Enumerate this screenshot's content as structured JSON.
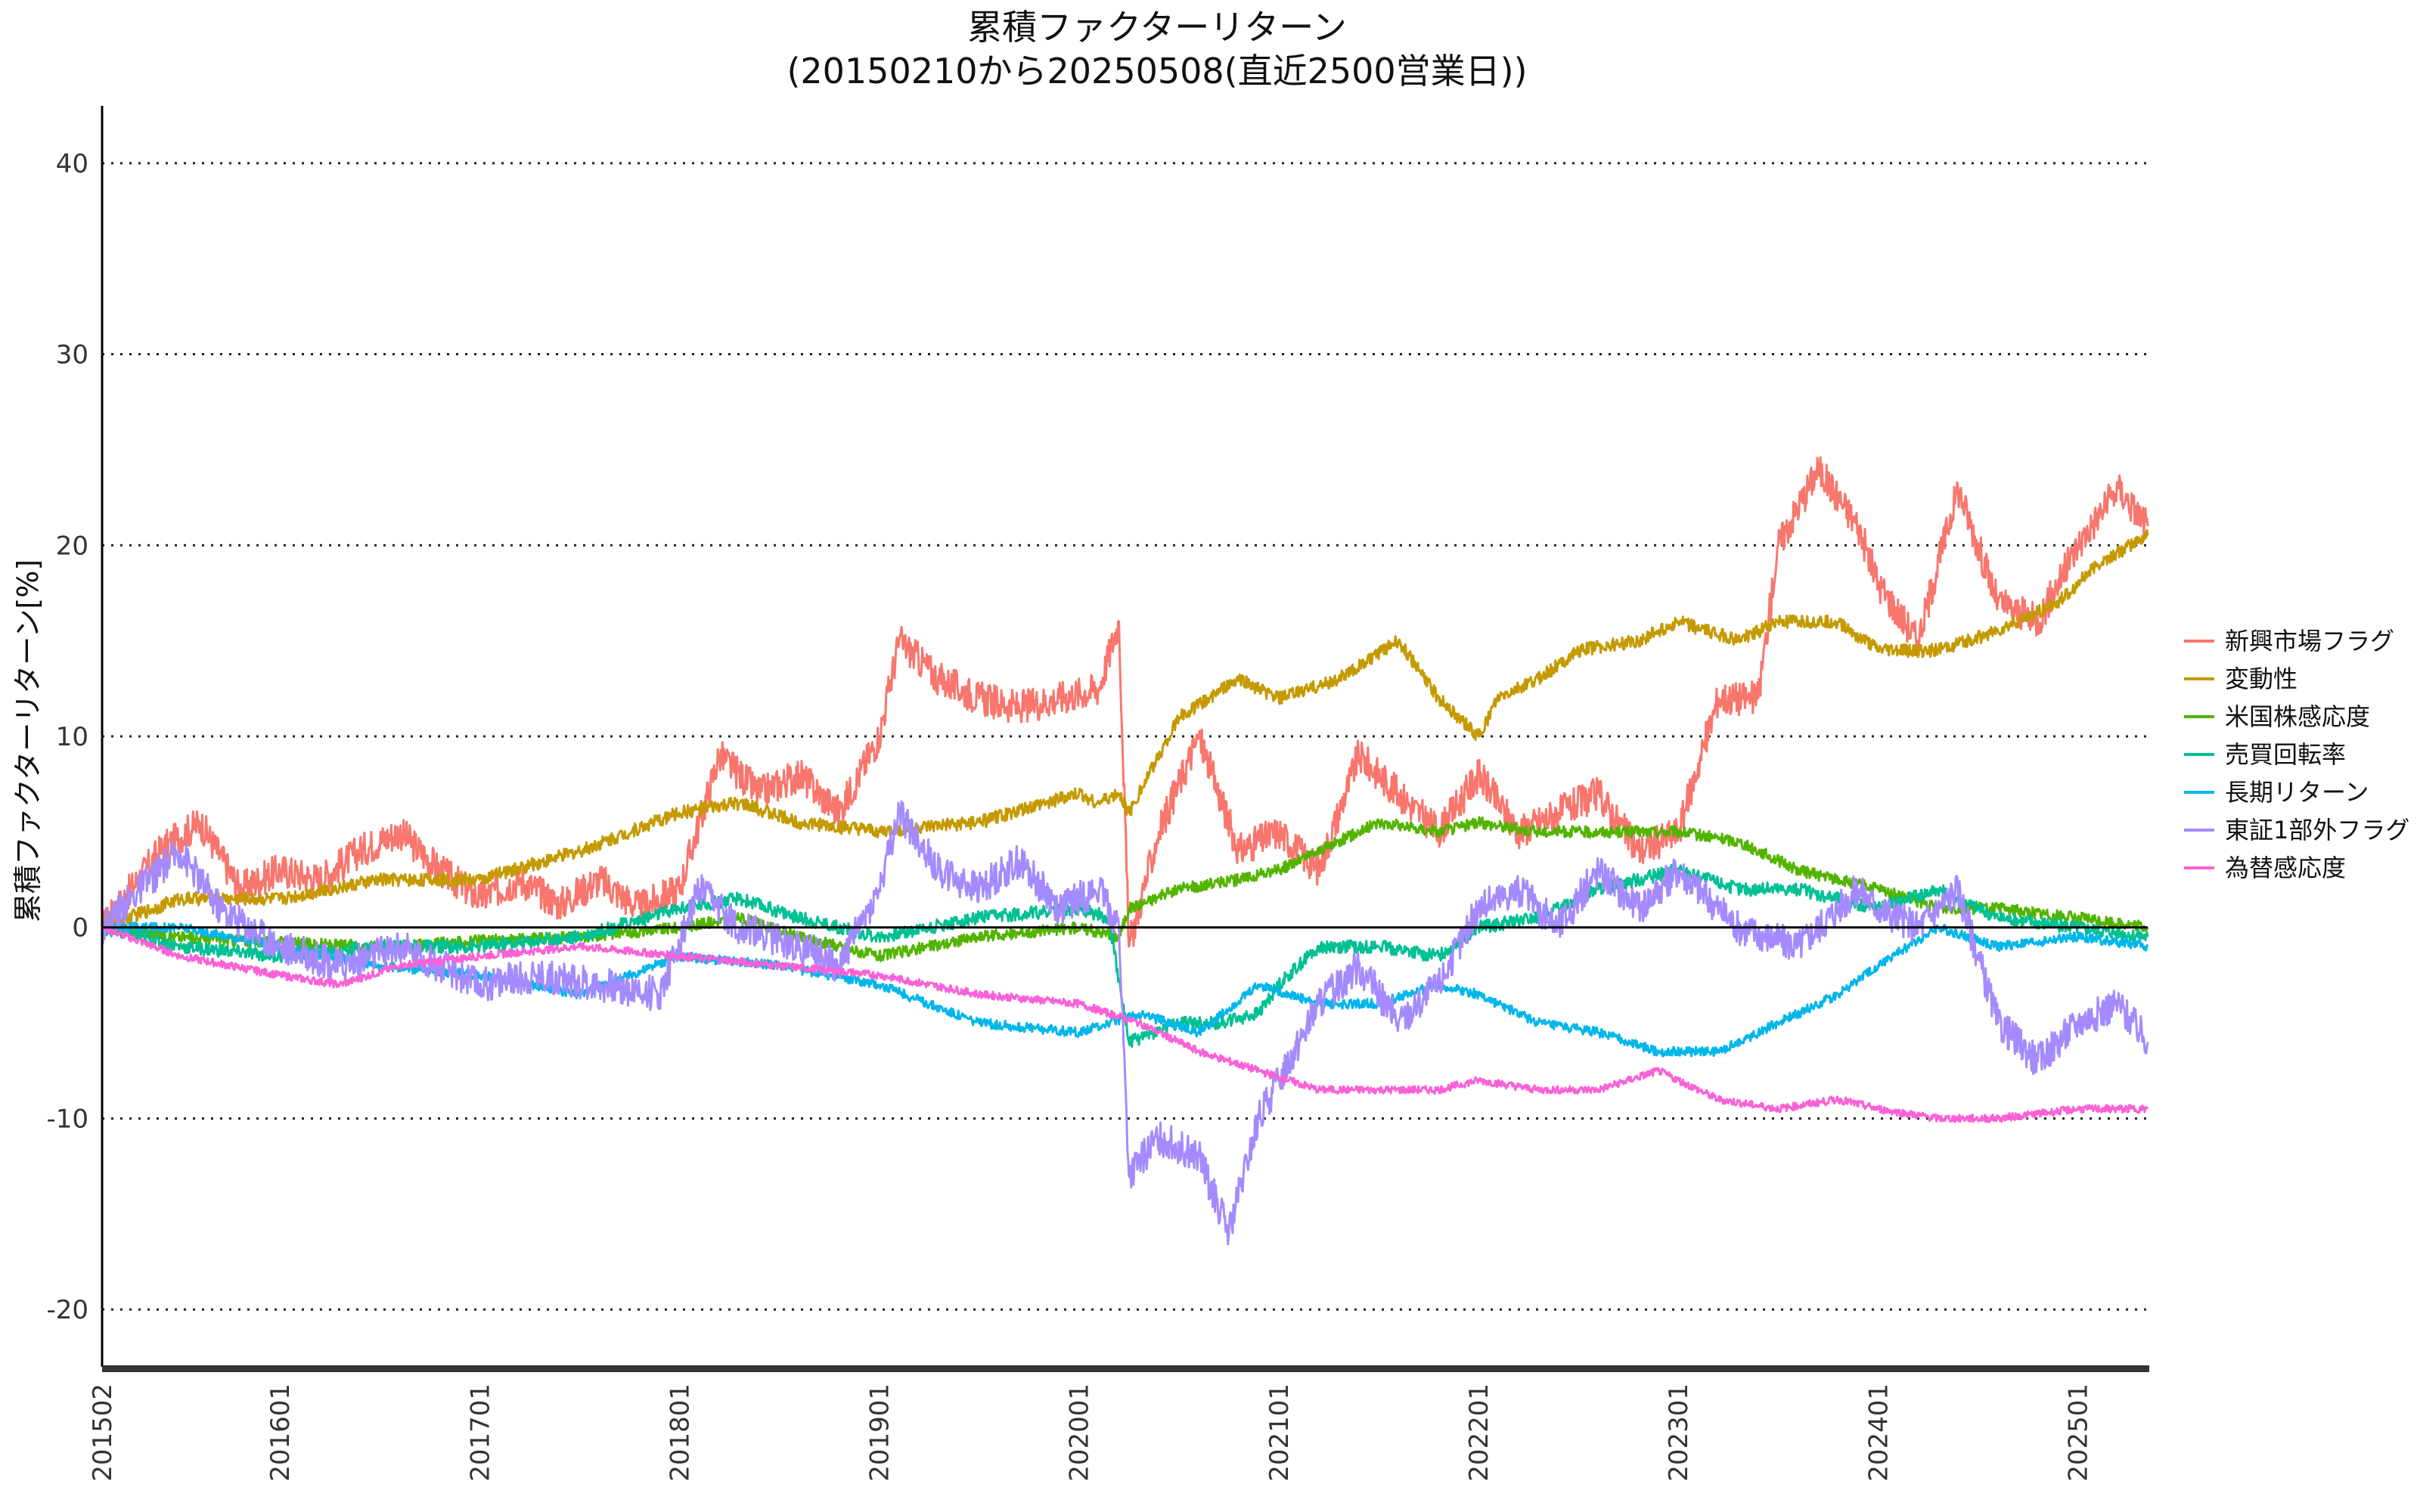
{
  "chart_data": {
    "type": "line",
    "title": "累積ファクターリターン",
    "subtitle": "(20150210から20250508(直近2500営業日))",
    "ylabel": "累積ファクターリターン[%]",
    "xlabel": "",
    "ylim": [
      -23,
      43
    ],
    "yticks": [
      -20,
      -10,
      0,
      10,
      20,
      30,
      40
    ],
    "xlim": [
      2015.11,
      2025.35
    ],
    "xticks": [
      {
        "label": "201502",
        "x": 2015.08
      },
      {
        "label": "201601",
        "x": 2016.0
      },
      {
        "label": "201701",
        "x": 2017.0
      },
      {
        "label": "201801",
        "x": 2018.0
      },
      {
        "label": "201901",
        "x": 2019.0
      },
      {
        "label": "202001",
        "x": 2020.0
      },
      {
        "label": "202101",
        "x": 2021.0
      },
      {
        "label": "202201",
        "x": 2022.0
      },
      {
        "label": "202301",
        "x": 2023.0
      },
      {
        "label": "202401",
        "x": 2024.0
      },
      {
        "label": "202501",
        "x": 2025.0
      }
    ],
    "grid": "horizontal-dotted",
    "legend_position": "right",
    "series": [
      {
        "name": "新興市場フラグ",
        "color": "#F8766D",
        "x": [
          2015.11,
          2015.4,
          2015.6,
          2015.8,
          2016.0,
          2016.2,
          2016.4,
          2016.6,
          2016.8,
          2017.0,
          2017.2,
          2017.4,
          2017.6,
          2017.8,
          2018.0,
          2018.2,
          2018.4,
          2018.6,
          2018.8,
          2019.0,
          2019.1,
          2019.3,
          2019.5,
          2019.7,
          2019.9,
          2020.1,
          2020.2,
          2020.25,
          2020.4,
          2020.6,
          2020.8,
          2021.0,
          2021.2,
          2021.4,
          2021.6,
          2021.8,
          2022.0,
          2022.2,
          2022.4,
          2022.6,
          2022.8,
          2023.0,
          2023.2,
          2023.4,
          2023.5,
          2023.7,
          2023.9,
          2024.0,
          2024.2,
          2024.4,
          2024.6,
          2024.8,
          2025.0,
          2025.2,
          2025.35
        ],
        "y": [
          0,
          4,
          5.5,
          2,
          3,
          2.5,
          4,
          5,
          3,
          1.5,
          2.5,
          1.2,
          2.5,
          1,
          2,
          9,
          7,
          8,
          6,
          10,
          15,
          13,
          12,
          11.5,
          12,
          12.5,
          16,
          -1,
          5,
          10,
          4,
          5,
          3,
          9,
          7,
          5,
          8,
          5,
          6,
          7,
          4,
          5,
          12,
          12,
          20,
          24,
          21,
          18,
          15,
          23,
          17,
          16,
          20,
          23,
          21
        ]
      },
      {
        "name": "変動性",
        "color": "#C49A00",
        "x": [
          2015.11,
          2015.5,
          2016.0,
          2016.5,
          2017.0,
          2017.5,
          2018.0,
          2018.3,
          2018.6,
          2019.0,
          2019.5,
          2020.0,
          2020.1,
          2020.2,
          2020.25,
          2020.5,
          2020.8,
          2021.0,
          2021.3,
          2021.6,
          2021.8,
          2022.0,
          2022.1,
          2022.3,
          2022.5,
          2022.8,
          2023.0,
          2023.3,
          2023.5,
          2023.8,
          2024.0,
          2024.3,
          2024.6,
          2024.9,
          2025.1,
          2025.35
        ],
        "y": [
          0,
          1.5,
          1.5,
          2.5,
          2.5,
          4,
          6,
          6.5,
          5.5,
          5,
          5.5,
          7,
          6.5,
          7,
          6,
          11,
          13,
          12,
          13,
          15,
          12,
          10,
          12,
          13,
          14.5,
          15,
          16,
          15,
          16,
          16,
          14.5,
          14.5,
          15.5,
          17,
          19,
          20.5
        ]
      },
      {
        "name": "米国株感応度",
        "color": "#53B400",
        "x": [
          2015.11,
          2015.5,
          2016.0,
          2016.5,
          2017.0,
          2017.5,
          2018.0,
          2018.3,
          2018.6,
          2019.0,
          2019.5,
          2020.0,
          2020.2,
          2020.25,
          2020.5,
          2020.8,
          2021.0,
          2021.3,
          2021.5,
          2021.8,
          2022.0,
          2022.3,
          2022.6,
          2023.0,
          2023.3,
          2023.6,
          2024.0,
          2024.3,
          2024.6,
          2025.0,
          2025.35
        ],
        "y": [
          0,
          -0.5,
          -0.8,
          -1,
          -0.7,
          -0.5,
          0,
          0.5,
          -0.5,
          -1.5,
          -0.5,
          0,
          -0.5,
          1,
          2,
          2.5,
          3,
          4.5,
          5.5,
          5,
          5.5,
          5,
          5,
          5,
          4.5,
          3,
          2,
          1,
          1,
          0.5,
          0
        ]
      },
      {
        "name": "売買回転率",
        "color": "#00C094",
        "x": [
          2015.11,
          2015.5,
          2016.0,
          2016.5,
          2017.0,
          2017.5,
          2018.0,
          2018.3,
          2018.6,
          2019.0,
          2019.5,
          2020.0,
          2020.15,
          2020.25,
          2020.5,
          2020.7,
          2020.9,
          2021.0,
          2021.2,
          2021.5,
          2021.8,
          2022.0,
          2022.3,
          2022.6,
          2023.0,
          2023.3,
          2023.6,
          2024.0,
          2024.3,
          2024.6,
          2025.0,
          2025.35
        ],
        "y": [
          0,
          -1,
          -1.5,
          -1,
          -1,
          -0.5,
          1,
          1.5,
          0.5,
          -0.5,
          0.5,
          1,
          0.5,
          -6,
          -5,
          -5,
          -4.5,
          -3,
          -1,
          -1,
          -1.5,
          0,
          0.5,
          2,
          3,
          2,
          2,
          1,
          2,
          0.5,
          0,
          -0.5
        ]
      },
      {
        "name": "長期リターン",
        "color": "#00B6EB",
        "x": [
          2015.11,
          2015.5,
          2016.0,
          2016.5,
          2017.0,
          2017.5,
          2018.0,
          2018.5,
          2019.0,
          2019.5,
          2020.0,
          2020.3,
          2020.6,
          2020.9,
          2021.2,
          2021.5,
          2021.8,
          2022.0,
          2022.3,
          2022.6,
          2022.9,
          2023.2,
          2023.5,
          2023.8,
          2024.0,
          2024.3,
          2024.6,
          2025.0,
          2025.35
        ],
        "y": [
          0,
          0,
          -1,
          -2,
          -2.5,
          -3.5,
          -1.5,
          -2,
          -3,
          -5,
          -5.5,
          -4.5,
          -5.5,
          -3,
          -4,
          -4,
          -3,
          -3.5,
          -5,
          -5.5,
          -6.5,
          -6.5,
          -5,
          -3.5,
          -2,
          0,
          -1,
          -0.5,
          -1
        ]
      },
      {
        "name": "東証1部外フラグ",
        "color": "#A58AFF",
        "x": [
          2015.11,
          2015.3,
          2015.5,
          2015.7,
          2016.0,
          2016.3,
          2016.6,
          2017.0,
          2017.3,
          2017.6,
          2017.9,
          2018.1,
          2018.3,
          2018.6,
          2018.8,
          2019.0,
          2019.1,
          2019.3,
          2019.5,
          2019.7,
          2019.9,
          2020.1,
          2020.2,
          2020.25,
          2020.4,
          2020.6,
          2020.75,
          2020.9,
          2021.0,
          2021.2,
          2021.4,
          2021.6,
          2021.8,
          2022.0,
          2022.2,
          2022.4,
          2022.6,
          2022.8,
          2023.0,
          2023.3,
          2023.6,
          2023.9,
          2024.0,
          2024.2,
          2024.4,
          2024.6,
          2024.8,
          2025.0,
          2025.2,
          2025.35
        ],
        "y": [
          0,
          2,
          4,
          1,
          -1,
          -2,
          -1,
          -3,
          -2.5,
          -3,
          -3.5,
          2,
          0,
          -1,
          -2,
          2,
          6,
          3,
          2,
          3.5,
          1,
          2,
          0,
          -13,
          -11,
          -12,
          -16,
          -10,
          -8,
          -4,
          -2,
          -5,
          -3,
          1,
          2,
          0,
          3,
          1,
          3,
          0,
          -1,
          2,
          1,
          0,
          2,
          -5,
          -7,
          -5,
          -4,
          -6
        ]
      },
      {
        "name": "為替感応度",
        "color": "#FB61D7",
        "x": [
          2015.11,
          2015.5,
          2016.0,
          2016.3,
          2016.6,
          2017.0,
          2017.5,
          2018.0,
          2018.5,
          2019.0,
          2019.5,
          2020.0,
          2020.3,
          2020.6,
          2020.9,
          2021.2,
          2021.5,
          2021.8,
          2022.0,
          2022.3,
          2022.6,
          2022.9,
          2023.2,
          2023.5,
          2023.8,
          2024.0,
          2024.3,
          2024.6,
          2025.0,
          2025.35
        ],
        "y": [
          0,
          -1.5,
          -2.5,
          -3,
          -2,
          -1.5,
          -1,
          -1.5,
          -2,
          -2.5,
          -3.5,
          -4,
          -5,
          -6.5,
          -7.5,
          -8.5,
          -8.5,
          -8.5,
          -8,
          -8.5,
          -8.5,
          -7.5,
          -9,
          -9.5,
          -9,
          -9.5,
          -10,
          -10,
          -9.5,
          -9.5
        ]
      }
    ]
  }
}
